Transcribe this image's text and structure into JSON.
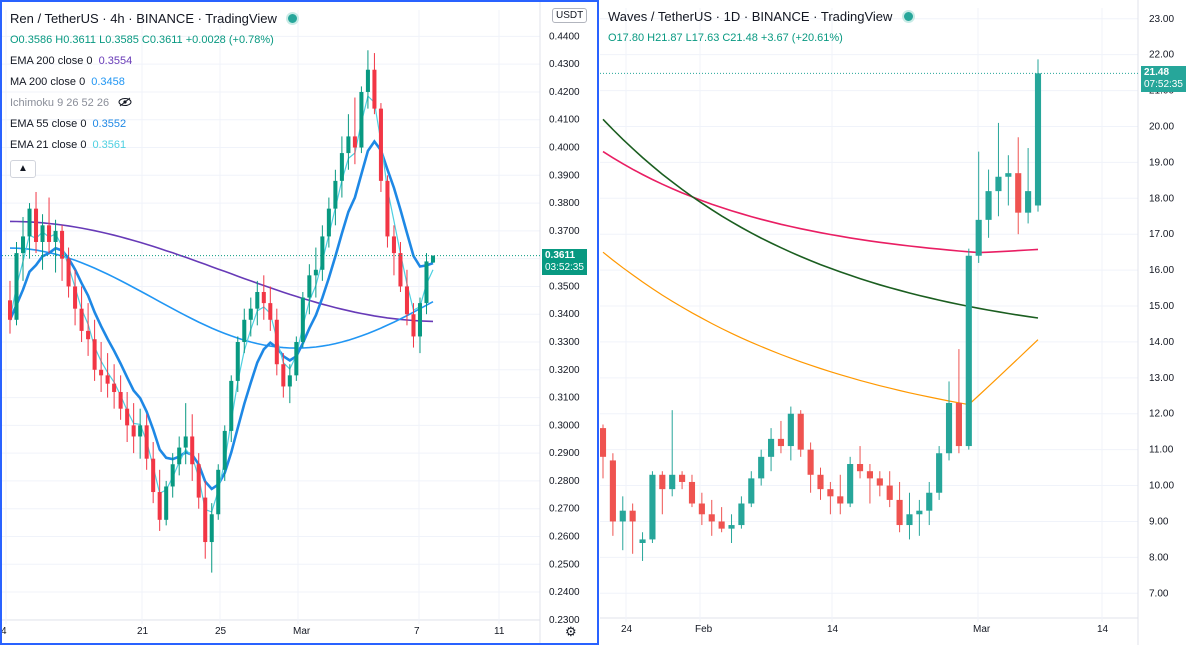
{
  "left": {
    "title": "Ren / TetherUS · 4h · BINANCE · TradingView",
    "ohlc": "O0.3586 H0.3611 L0.3585 C0.3611 +0.0028 (+0.78%)",
    "indicators": [
      {
        "name": "EMA 200 close 0",
        "value": "0.3554",
        "color": "#673ab7"
      },
      {
        "name": "MA 200 close 0",
        "value": "0.3458",
        "color": "#2196f3"
      },
      {
        "name": "Ichimoku 9 26 52 26",
        "value": "",
        "color": "#8a8e99",
        "hidden": true
      },
      {
        "name": "EMA 55 close 0",
        "value": "0.3552",
        "color": "#1e88e5"
      },
      {
        "name": "EMA 21 close 0",
        "value": "0.3561",
        "color": "#4dd0e1"
      }
    ],
    "currency_button": "USDT",
    "price_ticks": [
      "0.4400",
      "0.4300",
      "0.4200",
      "0.4100",
      "0.4000",
      "0.3900",
      "0.3800",
      "0.3700",
      "0.3600",
      "0.3500",
      "0.3400",
      "0.3300",
      "0.3200",
      "0.3100",
      "0.3000",
      "0.2900",
      "0.2800",
      "0.2700",
      "0.2600",
      "0.2500",
      "0.2400",
      "0.2300"
    ],
    "time_ticks": [
      "4",
      "21",
      "25",
      "Mar",
      "7",
      "11"
    ],
    "last_price": "0.3611",
    "countdown": "03:52:35",
    "colors": {
      "up": "#089981",
      "down": "#f23645",
      "frame": "#2962ff"
    }
  },
  "right": {
    "title": "Waves / TetherUS · 1D · BINANCE · TradingView",
    "ohlc": "O17.80 H21.87 L17.63 C21.48 +3.67 (+20.61%)",
    "price_ticks": [
      "23.00",
      "22.00",
      "21.00",
      "20.00",
      "19.00",
      "18.00",
      "17.00",
      "16.00",
      "15.00",
      "14.00",
      "13.00",
      "12.00",
      "11.00",
      "10.00",
      "9.00",
      "8.00",
      "7.00"
    ],
    "time_ticks": [
      "24",
      "Feb",
      "14",
      "Mar",
      "14"
    ],
    "last_price": "21.48",
    "countdown": "07:52:35",
    "colors": {
      "up": "#26a69a",
      "down": "#ef5350",
      "ma_red": "#e91e63",
      "ma_green": "#1b5e20",
      "ma_orange": "#ff9800"
    }
  },
  "chart_data": [
    {
      "type": "candlestick",
      "title": "Ren / TetherUS · 4h · BINANCE",
      "ylim": [
        0.2285,
        0.4495
      ],
      "ohlc": [
        [
          0.345,
          0.352,
          0.333,
          0.338
        ],
        [
          0.338,
          0.366,
          0.336,
          0.362
        ],
        [
          0.362,
          0.375,
          0.352,
          0.368
        ],
        [
          0.368,
          0.38,
          0.36,
          0.378
        ],
        [
          0.378,
          0.384,
          0.362,
          0.366
        ],
        [
          0.366,
          0.376,
          0.356,
          0.372
        ],
        [
          0.372,
          0.382,
          0.362,
          0.366
        ],
        [
          0.366,
          0.374,
          0.355,
          0.37
        ],
        [
          0.37,
          0.372,
          0.352,
          0.36
        ],
        [
          0.36,
          0.364,
          0.346,
          0.35
        ],
        [
          0.35,
          0.356,
          0.336,
          0.342
        ],
        [
          0.342,
          0.35,
          0.33,
          0.334
        ],
        [
          0.334,
          0.344,
          0.325,
          0.331
        ],
        [
          0.331,
          0.338,
          0.316,
          0.32
        ],
        [
          0.32,
          0.33,
          0.312,
          0.318
        ],
        [
          0.318,
          0.326,
          0.31,
          0.315
        ],
        [
          0.315,
          0.322,
          0.306,
          0.312
        ],
        [
          0.312,
          0.318,
          0.302,
          0.306
        ],
        [
          0.306,
          0.312,
          0.294,
          0.3
        ],
        [
          0.3,
          0.308,
          0.29,
          0.296
        ],
        [
          0.296,
          0.306,
          0.288,
          0.3
        ],
        [
          0.3,
          0.304,
          0.284,
          0.288
        ],
        [
          0.288,
          0.294,
          0.272,
          0.276
        ],
        [
          0.276,
          0.284,
          0.262,
          0.266
        ],
        [
          0.266,
          0.28,
          0.264,
          0.278
        ],
        [
          0.278,
          0.29,
          0.274,
          0.286
        ],
        [
          0.286,
          0.296,
          0.282,
          0.292
        ],
        [
          0.292,
          0.308,
          0.286,
          0.296
        ],
        [
          0.296,
          0.304,
          0.28,
          0.286
        ],
        [
          0.286,
          0.29,
          0.27,
          0.274
        ],
        [
          0.274,
          0.28,
          0.252,
          0.258
        ],
        [
          0.258,
          0.272,
          0.247,
          0.268
        ],
        [
          0.268,
          0.286,
          0.266,
          0.284
        ],
        [
          0.284,
          0.3,
          0.28,
          0.298
        ],
        [
          0.298,
          0.318,
          0.294,
          0.316
        ],
        [
          0.316,
          0.332,
          0.312,
          0.33
        ],
        [
          0.33,
          0.342,
          0.326,
          0.338
        ],
        [
          0.338,
          0.346,
          0.332,
          0.342
        ],
        [
          0.342,
          0.352,
          0.336,
          0.348
        ],
        [
          0.348,
          0.354,
          0.338,
          0.344
        ],
        [
          0.344,
          0.35,
          0.334,
          0.338
        ],
        [
          0.338,
          0.342,
          0.318,
          0.322
        ],
        [
          0.322,
          0.326,
          0.31,
          0.314
        ],
        [
          0.314,
          0.322,
          0.308,
          0.318
        ],
        [
          0.318,
          0.332,
          0.316,
          0.33
        ],
        [
          0.33,
          0.348,
          0.328,
          0.346
        ],
        [
          0.346,
          0.358,
          0.34,
          0.354
        ],
        [
          0.354,
          0.364,
          0.346,
          0.356
        ],
        [
          0.356,
          0.372,
          0.352,
          0.368
        ],
        [
          0.368,
          0.382,
          0.364,
          0.378
        ],
        [
          0.378,
          0.392,
          0.372,
          0.388
        ],
        [
          0.388,
          0.404,
          0.382,
          0.398
        ],
        [
          0.398,
          0.412,
          0.392,
          0.404
        ],
        [
          0.404,
          0.418,
          0.394,
          0.4
        ],
        [
          0.4,
          0.422,
          0.398,
          0.42
        ],
        [
          0.42,
          0.435,
          0.414,
          0.428
        ],
        [
          0.428,
          0.434,
          0.412,
          0.414
        ],
        [
          0.414,
          0.416,
          0.384,
          0.388
        ],
        [
          0.388,
          0.39,
          0.364,
          0.368
        ],
        [
          0.368,
          0.372,
          0.354,
          0.362
        ],
        [
          0.362,
          0.366,
          0.348,
          0.35
        ],
        [
          0.35,
          0.356,
          0.336,
          0.34
        ],
        [
          0.34,
          0.344,
          0.328,
          0.332
        ],
        [
          0.332,
          0.346,
          0.326,
          0.344
        ],
        [
          0.344,
          0.362,
          0.34,
          0.359
        ],
        [
          0.3586,
          0.3611,
          0.3585,
          0.3611
        ]
      ]
    },
    {
      "type": "candlestick",
      "title": "Waves / TetherUS · 1D · BINANCE",
      "ylim": [
        6.2,
        23.3
      ],
      "ohlc": [
        [
          11.6,
          11.7,
          10.2,
          10.8
        ],
        [
          10.7,
          10.9,
          8.6,
          9.0
        ],
        [
          9.0,
          9.7,
          8.2,
          9.3
        ],
        [
          9.3,
          9.5,
          8.1,
          9.0
        ],
        [
          8.4,
          8.7,
          7.9,
          8.5
        ],
        [
          8.5,
          10.4,
          8.4,
          10.3
        ],
        [
          10.3,
          10.4,
          9.2,
          9.9
        ],
        [
          9.9,
          12.1,
          9.7,
          10.3
        ],
        [
          10.3,
          10.4,
          9.9,
          10.1
        ],
        [
          10.1,
          10.3,
          9.4,
          9.5
        ],
        [
          9.5,
          9.8,
          8.9,
          9.2
        ],
        [
          9.2,
          9.6,
          8.6,
          9.0
        ],
        [
          9.0,
          9.4,
          8.7,
          8.8
        ],
        [
          8.8,
          9.2,
          8.4,
          8.9
        ],
        [
          8.9,
          9.7,
          8.8,
          9.5
        ],
        [
          9.5,
          10.4,
          9.4,
          10.2
        ],
        [
          10.2,
          11.0,
          10.0,
          10.8
        ],
        [
          10.8,
          11.6,
          10.4,
          11.3
        ],
        [
          11.3,
          11.8,
          10.9,
          11.1
        ],
        [
          11.1,
          12.2,
          10.7,
          12.0
        ],
        [
          12.0,
          12.1,
          10.8,
          11.0
        ],
        [
          11.0,
          11.2,
          9.8,
          10.3
        ],
        [
          10.3,
          10.5,
          9.6,
          9.9
        ],
        [
          9.9,
          10.1,
          9.2,
          9.7
        ],
        [
          9.7,
          10.3,
          9.2,
          9.5
        ],
        [
          9.5,
          10.8,
          9.4,
          10.6
        ],
        [
          10.6,
          11.1,
          10.2,
          10.4
        ],
        [
          10.4,
          10.6,
          9.5,
          10.2
        ],
        [
          10.2,
          10.4,
          9.7,
          10.0
        ],
        [
          10.0,
          10.4,
          9.4,
          9.6
        ],
        [
          9.6,
          10.1,
          8.7,
          8.9
        ],
        [
          8.9,
          9.8,
          8.5,
          9.2
        ],
        [
          9.2,
          9.6,
          8.6,
          9.3
        ],
        [
          9.3,
          10.1,
          8.9,
          9.8
        ],
        [
          9.8,
          11.1,
          9.6,
          10.9
        ],
        [
          10.9,
          12.9,
          10.7,
          12.3
        ],
        [
          12.3,
          13.8,
          10.9,
          11.1
        ],
        [
          11.1,
          16.6,
          11.0,
          16.4
        ],
        [
          16.4,
          19.3,
          16.2,
          17.4
        ],
        [
          17.4,
          18.8,
          16.9,
          18.2
        ],
        [
          18.2,
          20.1,
          17.5,
          18.6
        ],
        [
          18.6,
          19.2,
          17.8,
          18.7
        ],
        [
          18.7,
          19.7,
          17.0,
          17.6
        ],
        [
          17.6,
          19.4,
          17.3,
          18.2
        ],
        [
          17.8,
          21.87,
          17.63,
          21.48
        ]
      ]
    }
  ]
}
